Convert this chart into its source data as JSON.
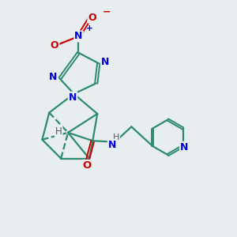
{
  "bg_color": "#e8edf0",
  "bond_color": "#2d8b70",
  "atom_N_color": "#0000dd",
  "atom_O_color": "#cc0000",
  "atom_H_color": "#555555",
  "lw": 1.6,
  "lw_dbl": 1.4,
  "figsize": [
    3.0,
    3.0
  ],
  "dpi": 100,
  "xlim": [
    0,
    10
  ],
  "ylim": [
    0,
    10
  ]
}
